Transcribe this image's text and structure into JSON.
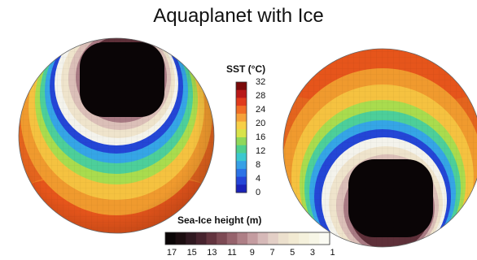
{
  "title": "Aquaplanet with Ice",
  "sst_legend": {
    "title": "SST (°C)",
    "ticks": [
      "32",
      "28",
      "24",
      "20",
      "16",
      "12",
      "8",
      "4",
      "0"
    ],
    "colors": [
      "#7a0a0a",
      "#b81818",
      "#e03a1c",
      "#f06d26",
      "#f5a13a",
      "#f7cf47",
      "#d8e34a",
      "#8fd85a",
      "#4fcf8e",
      "#3bc8cf",
      "#37a0e6",
      "#2c73e6",
      "#2546d8",
      "#1a22b8"
    ]
  },
  "ice_legend": {
    "title": "Sea-Ice height (m)",
    "ticks": [
      "17",
      "15",
      "13",
      "11",
      "9",
      "7",
      "5",
      "3",
      "1"
    ],
    "colors": [
      "#0a0506",
      "#1b0d10",
      "#2f1820",
      "#47232e",
      "#63343f",
      "#7d4a54",
      "#96636c",
      "#ae7f86",
      "#c49ca0",
      "#d6b9b8",
      "#e3cfc6",
      "#ece0cd",
      "#f2ead2",
      "#f5f1dc",
      "#f7f6e6",
      "#fbfbf3"
    ]
  }
}
